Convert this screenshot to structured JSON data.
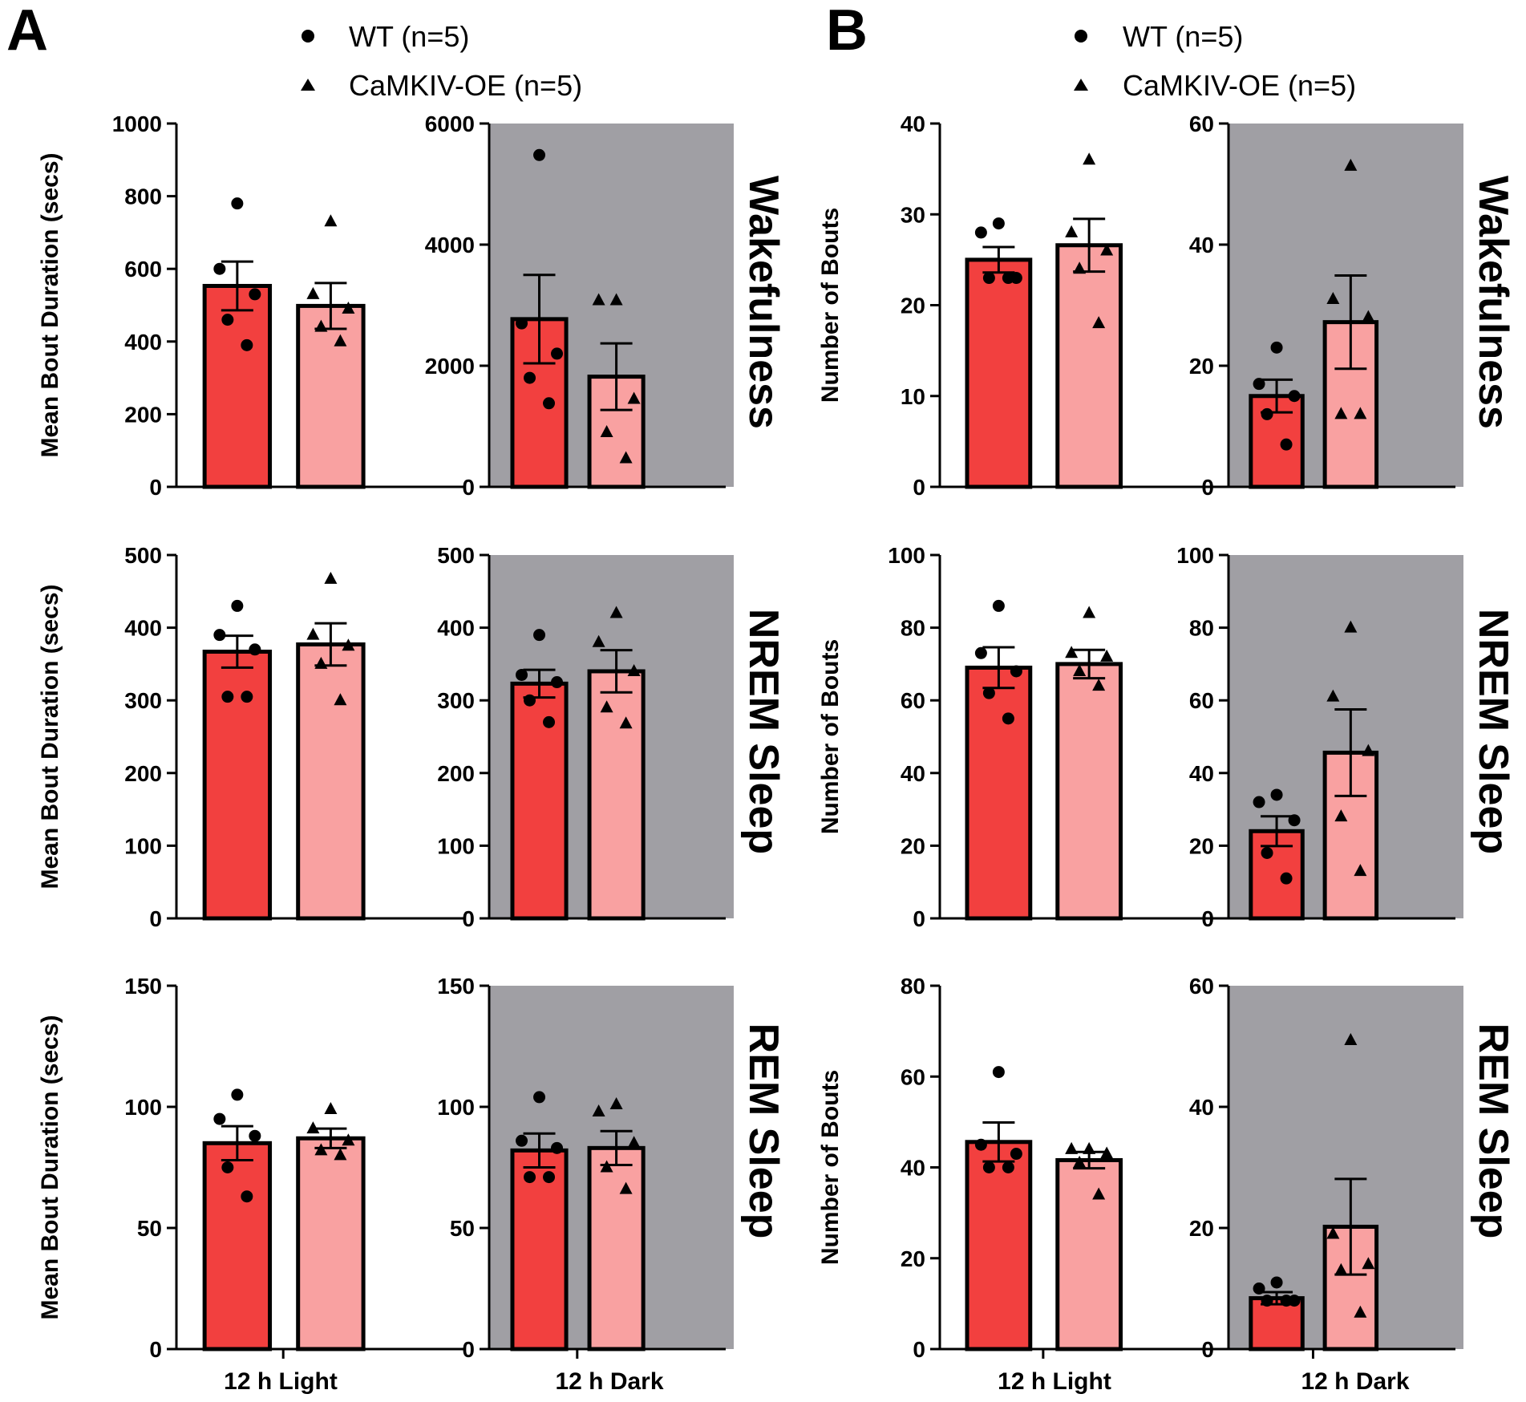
{
  "colors": {
    "wt_bar": "#f2403f",
    "oe_bar": "#f9a1a1",
    "dark_bg": "#a09fa4",
    "ink": "#000000"
  },
  "panels": [
    {
      "letter": "A",
      "legend": {
        "wt": "WT (n=5)",
        "oe": "CaMKIV-OE (n=5)"
      }
    },
    {
      "letter": "B",
      "legend": {
        "wt": "WT (n=5)",
        "oe": "CaMKIV-OE (n=5)"
      }
    }
  ],
  "row_labels": [
    "Wakefulness",
    "NREM Sleep",
    "REM Sleep"
  ],
  "x_categories": [
    "12 h Light",
    "12 h Dark"
  ],
  "y_titles": {
    "A": "Mean Bout Duration (secs)",
    "B": "Number of Bouts"
  },
  "chart_data": [
    {
      "type": "bar",
      "panel": "A",
      "row": "Wakefulness",
      "period": "12 h Light",
      "ylabel": "Mean Bout Duration (secs)",
      "ylim": [
        0,
        1000
      ],
      "ticks": [
        0,
        200,
        400,
        600,
        800,
        1000
      ],
      "series": [
        {
          "name": "WT (n=5)",
          "mean": 553,
          "sem": 67,
          "points": [
            780,
            600,
            530,
            460,
            390
          ]
        },
        {
          "name": "CaMKIV-OE (n=5)",
          "mean": 498,
          "sem": 63,
          "points": [
            730,
            530,
            490,
            440,
            400
          ]
        }
      ]
    },
    {
      "type": "bar",
      "panel": "A",
      "row": "Wakefulness",
      "period": "12 h Dark",
      "ylabel": "Mean Bout Duration (secs)",
      "ylim": [
        0,
        6000
      ],
      "ticks": [
        0,
        2000,
        4000,
        6000
      ],
      "series": [
        {
          "name": "WT (n=5)",
          "mean": 2770,
          "sem": 730,
          "points": [
            5480,
            2700,
            2200,
            1800,
            1380
          ]
        },
        {
          "name": "CaMKIV-OE (n=5)",
          "mean": 1820,
          "sem": 550,
          "points": [
            3080,
            3080,
            1450,
            900,
            470
          ]
        }
      ]
    },
    {
      "type": "bar",
      "panel": "A",
      "row": "NREM Sleep",
      "period": "12 h Light",
      "ylabel": "Mean Bout Duration (secs)",
      "ylim": [
        0,
        500
      ],
      "ticks": [
        0,
        100,
        200,
        300,
        400,
        500
      ],
      "series": [
        {
          "name": "WT (n=5)",
          "mean": 367,
          "sem": 22,
          "points": [
            430,
            390,
            370,
            305,
            305
          ]
        },
        {
          "name": "CaMKIV-OE (n=5)",
          "mean": 377,
          "sem": 29,
          "points": [
            467,
            390,
            375,
            350,
            300
          ]
        }
      ]
    },
    {
      "type": "bar",
      "panel": "A",
      "row": "NREM Sleep",
      "period": "12 h Dark",
      "ylabel": "Mean Bout Duration (secs)",
      "ylim": [
        0,
        500
      ],
      "ticks": [
        0,
        100,
        200,
        300,
        400,
        500
      ],
      "series": [
        {
          "name": "WT (n=5)",
          "mean": 323,
          "sem": 19,
          "points": [
            390,
            335,
            325,
            300,
            270
          ]
        },
        {
          "name": "CaMKIV-OE (n=5)",
          "mean": 340,
          "sem": 29,
          "points": [
            420,
            380,
            340,
            290,
            268
          ]
        }
      ]
    },
    {
      "type": "bar",
      "panel": "A",
      "row": "REM Sleep",
      "period": "12 h Light",
      "ylabel": "Mean Bout Duration (secs)",
      "ylim": [
        0,
        150
      ],
      "ticks": [
        0,
        50,
        100,
        150
      ],
      "series": [
        {
          "name": "WT (n=5)",
          "mean": 85,
          "sem": 7,
          "points": [
            105,
            95,
            88,
            75,
            63
          ]
        },
        {
          "name": "CaMKIV-OE (n=5)",
          "mean": 87,
          "sem": 4,
          "points": [
            99,
            91,
            86,
            82,
            80
          ]
        }
      ]
    },
    {
      "type": "bar",
      "panel": "A",
      "row": "REM Sleep",
      "period": "12 h Dark",
      "ylabel": "Mean Bout Duration (secs)",
      "ylim": [
        0,
        150
      ],
      "ticks": [
        0,
        50,
        100,
        150
      ],
      "series": [
        {
          "name": "WT (n=5)",
          "mean": 82,
          "sem": 7,
          "points": [
            104,
            86,
            83,
            71,
            71
          ]
        },
        {
          "name": "CaMKIV-OE (n=5)",
          "mean": 83,
          "sem": 7,
          "points": [
            101,
            98,
            85,
            75,
            66
          ]
        }
      ]
    },
    {
      "type": "bar",
      "panel": "B",
      "row": "Wakefulness",
      "period": "12 h Light",
      "ylabel": "Number of Bouts",
      "ylim": [
        0,
        40
      ],
      "ticks": [
        0,
        10,
        20,
        30,
        40
      ],
      "series": [
        {
          "name": "WT (n=5)",
          "mean": 25,
          "sem": 1.4,
          "points": [
            29,
            28,
            23,
            23,
            23
          ]
        },
        {
          "name": "CaMKIV-OE (n=5)",
          "mean": 26.6,
          "sem": 2.9,
          "points": [
            36,
            28,
            26,
            24,
            18
          ]
        }
      ]
    },
    {
      "type": "bar",
      "panel": "B",
      "row": "Wakefulness",
      "period": "12 h Dark",
      "ylabel": "Number of Bouts",
      "ylim": [
        0,
        60
      ],
      "ticks": [
        0,
        20,
        40,
        60
      ],
      "series": [
        {
          "name": "WT (n=5)",
          "mean": 15,
          "sem": 2.7,
          "points": [
            23,
            17,
            15,
            12,
            7
          ]
        },
        {
          "name": "CaMKIV-OE (n=5)",
          "mean": 27.2,
          "sem": 7.7,
          "points": [
            53,
            31,
            28,
            12,
            12
          ]
        }
      ]
    },
    {
      "type": "bar",
      "panel": "B",
      "row": "NREM Sleep",
      "period": "12 h Light",
      "ylabel": "Number of Bouts",
      "ylim": [
        0,
        100
      ],
      "ticks": [
        0,
        20,
        40,
        60,
        80,
        100
      ],
      "series": [
        {
          "name": "WT (n=5)",
          "mean": 69,
          "sem": 5.6,
          "points": [
            86,
            73,
            68,
            62,
            55
          ]
        },
        {
          "name": "CaMKIV-OE (n=5)",
          "mean": 70,
          "sem": 3.9,
          "points": [
            84,
            73,
            72,
            68,
            64
          ]
        }
      ]
    },
    {
      "type": "bar",
      "panel": "B",
      "row": "NREM Sleep",
      "period": "12 h Dark",
      "ylabel": "Number of Bouts",
      "ylim": [
        0,
        100
      ],
      "ticks": [
        0,
        20,
        40,
        60,
        80,
        100
      ],
      "series": [
        {
          "name": "WT (n=5)",
          "mean": 24,
          "sem": 4.1,
          "points": [
            34,
            32,
            27,
            18,
            11
          ]
        },
        {
          "name": "CaMKIV-OE (n=5)",
          "mean": 45.6,
          "sem": 11.9,
          "points": [
            80,
            61,
            46,
            28,
            13
          ]
        }
      ]
    },
    {
      "type": "bar",
      "panel": "B",
      "row": "REM Sleep",
      "period": "12 h Light",
      "ylabel": "Number of Bouts",
      "ylim": [
        0,
        80
      ],
      "ticks": [
        0,
        20,
        40,
        60,
        80
      ],
      "series": [
        {
          "name": "WT (n=5)",
          "mean": 45.6,
          "sem": 4.3,
          "points": [
            61,
            45,
            43,
            40,
            40
          ]
        },
        {
          "name": "CaMKIV-OE (n=5)",
          "mean": 41.6,
          "sem": 1.8,
          "points": [
            44,
            44,
            43,
            41,
            34
          ]
        }
      ]
    },
    {
      "type": "bar",
      "panel": "B",
      "row": "REM Sleep",
      "period": "12 h Dark",
      "ylabel": "Number of Bouts",
      "ylim": [
        0,
        60
      ],
      "ticks": [
        0,
        20,
        40,
        60
      ],
      "series": [
        {
          "name": "WT (n=5)",
          "mean": 8.4,
          "sem": 1.0,
          "points": [
            11,
            10,
            8,
            8,
            8
          ]
        },
        {
          "name": "CaMKIV-OE (n=5)",
          "mean": 20.2,
          "sem": 7.9,
          "points": [
            51,
            19,
            14,
            13,
            6
          ]
        }
      ]
    }
  ]
}
